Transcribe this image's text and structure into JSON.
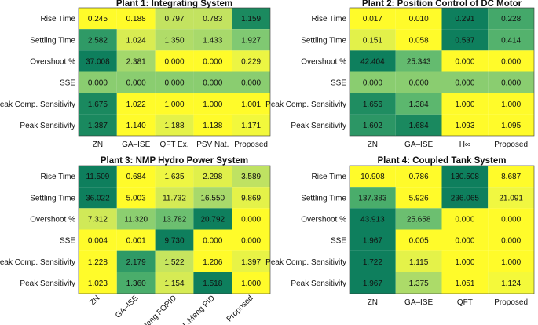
{
  "chart_data": [
    {
      "type": "heatmap",
      "title": "Plant 1: Integrating System",
      "rows": [
        "Rise Time",
        "Settling Time",
        "Overshoot %",
        "SSE",
        "Peak Comp. Sensitivity",
        "Peak Sensitivity"
      ],
      "columns": [
        "ZN",
        "GA–ISE",
        "QFT Ex.",
        "PSV Nat.",
        "Proposed"
      ],
      "values": [
        [
          "0.245",
          "0.188",
          "0.797",
          "0.783",
          "1.159"
        ],
        [
          "2.582",
          "1.024",
          "1.350",
          "1.433",
          "1.927"
        ],
        [
          "37.008",
          "2.381",
          "0.000",
          "0.000",
          "0.229"
        ],
        [
          "0.000",
          "0.000",
          "0.000",
          "0.000",
          "0.000"
        ],
        [
          "1.675",
          "1.022",
          "1.000",
          "1.000",
          "1.001"
        ],
        [
          "1.387",
          "1.140",
          "1.188",
          "1.138",
          "1.171"
        ]
      ],
      "colors": [
        [
          "#fffb2a",
          "#fffb2a",
          "#c3e360",
          "#c3e360",
          "#1b8a5f"
        ],
        [
          "#2f9a66",
          "#d8ec52",
          "#b0dc68",
          "#a8d96b",
          "#80c972"
        ],
        [
          "#0e7f5d",
          "#a4d86c",
          "#fffb2a",
          "#fffb2a",
          "#ecf543"
        ],
        [
          "#8acd70",
          "#8acd70",
          "#8acd70",
          "#8acd70",
          "#8acd70"
        ],
        [
          "#1a895f",
          "#fffb2a",
          "#fffb2a",
          "#fffb2a",
          "#fffb2a"
        ],
        [
          "#1a895f",
          "#fffb2a",
          "#e4f249",
          "#fffb2a",
          "#f2f83c"
        ]
      ],
      "rotated_labels": false
    },
    {
      "type": "heatmap",
      "title": "Plant 2: Position Control of DC Motor",
      "rows": [
        "Rise Time",
        "Settling Time",
        "Overshoot %",
        "SSE",
        "Peak Comp. Sensitivity",
        "Peak Sensitivity"
      ],
      "columns": [
        "ZN",
        "GA–ISE",
        "H∞",
        "Proposed"
      ],
      "values": [
        [
          "0.017",
          "0.010",
          "0.291",
          "0.228"
        ],
        [
          "0.151",
          "0.058",
          "0.537",
          "0.414"
        ],
        [
          "42.404",
          "25.343",
          "0.000",
          "0.000"
        ],
        [
          "0.000",
          "0.000",
          "0.000",
          "0.000"
        ],
        [
          "1.656",
          "1.384",
          "1.000",
          "1.000"
        ],
        [
          "1.602",
          "1.684",
          "1.093",
          "1.095"
        ]
      ],
      "colors": [
        [
          "#fffb2a",
          "#fffb2a",
          "#0e7f5d",
          "#44a86a"
        ],
        [
          "#e2f14a",
          "#fffb2a",
          "#0e7f5d",
          "#54b26d"
        ],
        [
          "#0e7f5d",
          "#64bb6f",
          "#fffb2a",
          "#fffb2a"
        ],
        [
          "#8acd70",
          "#8acd70",
          "#8acd70",
          "#8acd70"
        ],
        [
          "#1f8d61",
          "#5cb76e",
          "#fffb2a",
          "#fffb2a"
        ],
        [
          "#2c9665",
          "#1a895f",
          "#fffb2a",
          "#fffb2a"
        ]
      ],
      "rotated_labels": false
    },
    {
      "type": "heatmap",
      "title": "Plant 3: NMP Hydro Power System",
      "rows": [
        "Rise Time",
        "Settling Time",
        "Overshoot %",
        "SSE",
        "Peak Comp. Sensitivity",
        "Peak Sensitivity"
      ],
      "columns": [
        "ZN",
        "GA–ISE",
        "L.Meng FOPID",
        "L.Meng PID",
        "Proposed"
      ],
      "values": [
        [
          "11.509",
          "0.684",
          "1.635",
          "2.298",
          "3.589"
        ],
        [
          "36.022",
          "5.003",
          "11.732",
          "16.550",
          "9.869"
        ],
        [
          "7.312",
          "11.320",
          "13.782",
          "20.792",
          "0.000"
        ],
        [
          "0.004",
          "0.001",
          "9.730",
          "0.000",
          "0.000"
        ],
        [
          "1.228",
          "2.179",
          "1.522",
          "1.206",
          "1.397"
        ],
        [
          "1.023",
          "1.360",
          "1.154",
          "1.518",
          "1.000"
        ]
      ],
      "colors": [
        [
          "#0e7f5d",
          "#fffb2a",
          "#eef643",
          "#e0f04b",
          "#bfe262"
        ],
        [
          "#0e7f5d",
          "#fffb2a",
          "#d4ea55",
          "#a8d96b",
          "#e4f249"
        ],
        [
          "#d0e958",
          "#8ccf70",
          "#6cbf70",
          "#0e7f5d",
          "#fffb2a"
        ],
        [
          "#fffb2a",
          "#fffb2a",
          "#0e7f5d",
          "#fffb2a",
          "#fffb2a"
        ],
        [
          "#fffb2a",
          "#2f9a66",
          "#c6e55e",
          "#fffb2a",
          "#e8f346"
        ],
        [
          "#fffb2a",
          "#4aad6b",
          "#d6eb54",
          "#0e7f5d",
          "#fffb2a"
        ]
      ],
      "rotated_labels": true
    },
    {
      "type": "heatmap",
      "title": "Plant 4: Coupled Tank System",
      "rows": [
        "Rise Time",
        "Settling Time",
        "Overshoot %",
        "SSE",
        "Peak Comp. Sensitivity",
        "Peak Sensitivity"
      ],
      "columns": [
        "ZN",
        "GA–ISE",
        "QFT",
        "Proposed"
      ],
      "values": [
        [
          "10.908",
          "0.786",
          "130.508",
          "8.687"
        ],
        [
          "137.383",
          "5.926",
          "236.065",
          "21.091"
        ],
        [
          "43.913",
          "25.658",
          "0.000",
          "0.000"
        ],
        [
          "1.967",
          "0.005",
          "0.000",
          "0.000"
        ],
        [
          "1.722",
          "1.115",
          "1.000",
          "1.000"
        ],
        [
          "1.967",
          "1.375",
          "1.051",
          "1.124"
        ]
      ],
      "colors": [
        [
          "#fffb2a",
          "#fffb2a",
          "#0e7f5d",
          "#fffb2a"
        ],
        [
          "#4aad6b",
          "#fffb2a",
          "#0e7f5d",
          "#f0f741"
        ],
        [
          "#0e7f5d",
          "#6cbf70",
          "#fffb2a",
          "#fffb2a"
        ],
        [
          "#0e7f5d",
          "#fffb2a",
          "#fffb2a",
          "#fffb2a"
        ],
        [
          "#0e7f5d",
          "#e4f249",
          "#fffb2a",
          "#fffb2a"
        ],
        [
          "#0e7f5d",
          "#acdb69",
          "#fffb2a",
          "#f4f93a"
        ]
      ],
      "rotated_labels": false
    }
  ]
}
